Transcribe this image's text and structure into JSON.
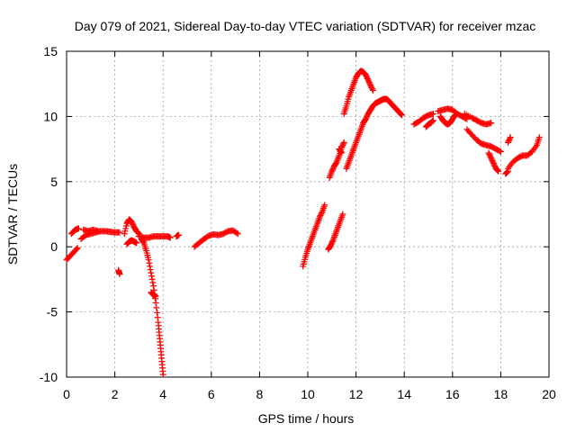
{
  "chart_data": {
    "type": "scatter",
    "title": "Day 079 of 2021, Sidereal Day-to-day VTEC variation (SDTVAR) for receiver mzac",
    "xlabel": "GPS time / hours",
    "ylabel": "SDTVAR / TECUs",
    "xlim": [
      0,
      20
    ],
    "ylim": [
      -10,
      15
    ],
    "xticks": [
      0,
      2,
      4,
      6,
      8,
      10,
      12,
      14,
      16,
      18,
      20
    ],
    "yticks": [
      -10,
      -5,
      0,
      5,
      10,
      15
    ],
    "grid": true,
    "marker": "+",
    "color": "#ff0000",
    "segments": [
      [
        [
          0.0,
          -1.0
        ],
        [
          0.15,
          -0.7
        ],
        [
          0.3,
          -0.4
        ],
        [
          0.45,
          -0.1
        ]
      ],
      [
        [
          0.2,
          1.0
        ],
        [
          0.35,
          1.3
        ],
        [
          0.5,
          1.4
        ]
      ],
      [
        [
          0.6,
          0.6
        ],
        [
          0.8,
          0.9
        ],
        [
          1.0,
          1.0
        ],
        [
          1.2,
          1.1
        ],
        [
          1.4,
          1.2
        ],
        [
          1.6,
          1.2
        ],
        [
          1.8,
          1.15
        ],
        [
          2.0,
          1.1
        ],
        [
          2.2,
          1.1
        ]
      ],
      [
        [
          0.7,
          1.3
        ],
        [
          0.9,
          1.2
        ],
        [
          1.1,
          1.3
        ],
        [
          1.3,
          1.2
        ]
      ],
      [
        [
          2.15,
          -1.8
        ],
        [
          2.2,
          -2.1
        ]
      ],
      [
        [
          2.4,
          1.0
        ],
        [
          2.5,
          1.8
        ],
        [
          2.6,
          2.1
        ],
        [
          2.7,
          1.9
        ],
        [
          2.8,
          1.5
        ],
        [
          2.9,
          1.2
        ],
        [
          3.0,
          1.0
        ]
      ],
      [
        [
          2.5,
          0.2
        ],
        [
          2.6,
          0.4
        ],
        [
          2.7,
          0.5
        ],
        [
          2.8,
          0.4
        ],
        [
          2.9,
          0.3
        ]
      ],
      [
        [
          3.0,
          0.8
        ],
        [
          3.2,
          0.7
        ],
        [
          3.4,
          0.7
        ],
        [
          3.6,
          0.8
        ],
        [
          3.8,
          0.8
        ],
        [
          4.0,
          0.8
        ],
        [
          4.2,
          0.8
        ],
        [
          4.3,
          0.7
        ]
      ],
      [
        [
          4.55,
          0.8
        ],
        [
          4.65,
          0.9
        ]
      ],
      [
        [
          3.1,
          0.6
        ],
        [
          3.2,
          0.3
        ],
        [
          3.3,
          -0.3
        ],
        [
          3.4,
          -1.0
        ],
        [
          3.5,
          -2.0
        ],
        [
          3.6,
          -3.0
        ],
        [
          3.7,
          -4.3
        ],
        [
          3.8,
          -5.8
        ],
        [
          3.85,
          -6.8
        ],
        [
          3.9,
          -7.8
        ],
        [
          3.95,
          -8.8
        ],
        [
          4.0,
          -9.8
        ]
      ],
      [
        [
          3.5,
          -3.5
        ],
        [
          3.6,
          -3.7
        ],
        [
          3.7,
          -3.8
        ]
      ],
      [
        [
          5.3,
          0.0
        ],
        [
          5.5,
          0.3
        ],
        [
          5.7,
          0.6
        ],
        [
          5.9,
          0.85
        ],
        [
          6.1,
          0.95
        ],
        [
          6.3,
          0.9
        ],
        [
          6.5,
          1.0
        ],
        [
          6.7,
          1.2
        ],
        [
          6.9,
          1.25
        ],
        [
          7.1,
          1.0
        ]
      ],
      [
        [
          9.8,
          -1.5
        ],
        [
          9.9,
          -0.8
        ],
        [
          10.0,
          -0.2
        ],
        [
          10.1,
          0.3
        ],
        [
          10.2,
          0.8
        ],
        [
          10.3,
          1.3
        ],
        [
          10.4,
          1.8
        ],
        [
          10.5,
          2.3
        ],
        [
          10.6,
          2.7
        ],
        [
          10.7,
          3.2
        ]
      ],
      [
        [
          10.85,
          -0.2
        ],
        [
          10.95,
          0.1
        ],
        [
          11.05,
          0.5
        ],
        [
          11.15,
          1.0
        ],
        [
          11.25,
          1.5
        ],
        [
          11.35,
          2.0
        ],
        [
          11.45,
          2.5
        ]
      ],
      [
        [
          10.9,
          5.3
        ],
        [
          11.0,
          5.8
        ],
        [
          11.1,
          6.2
        ],
        [
          11.2,
          6.5
        ],
        [
          11.3,
          7.0
        ],
        [
          11.4,
          7.6
        ],
        [
          11.5,
          8.0
        ]
      ],
      [
        [
          11.3,
          7.5
        ],
        [
          11.4,
          7.2
        ]
      ],
      [
        [
          11.5,
          10.2
        ],
        [
          11.6,
          10.8
        ],
        [
          11.7,
          11.5
        ],
        [
          11.8,
          12.0
        ],
        [
          11.9,
          12.5
        ],
        [
          12.0,
          13.0
        ],
        [
          12.1,
          13.3
        ],
        [
          12.2,
          13.5
        ],
        [
          12.3,
          13.4
        ],
        [
          12.4,
          13.2
        ],
        [
          12.5,
          12.8
        ],
        [
          12.6,
          12.4
        ],
        [
          12.7,
          12.0
        ]
      ],
      [
        [
          11.6,
          6.0
        ],
        [
          11.7,
          6.5
        ],
        [
          11.8,
          7.0
        ],
        [
          11.9,
          7.5
        ],
        [
          12.0,
          8.0
        ],
        [
          12.1,
          8.5
        ],
        [
          12.2,
          9.0
        ],
        [
          12.3,
          9.5
        ],
        [
          12.4,
          9.8
        ],
        [
          12.5,
          10.2
        ],
        [
          12.6,
          10.5
        ],
        [
          12.7,
          10.8
        ],
        [
          12.8,
          11.0
        ],
        [
          12.9,
          11.1
        ],
        [
          13.0,
          11.2
        ],
        [
          13.1,
          11.3
        ],
        [
          13.2,
          11.35
        ],
        [
          13.3,
          11.3
        ],
        [
          13.4,
          11.1
        ],
        [
          13.5,
          10.9
        ],
        [
          13.6,
          10.7
        ],
        [
          13.7,
          10.5
        ],
        [
          13.8,
          10.3
        ],
        [
          13.9,
          10.1
        ]
      ],
      [
        [
          14.4,
          9.4
        ],
        [
          14.6,
          9.6
        ],
        [
          14.8,
          9.9
        ],
        [
          15.0,
          10.1
        ],
        [
          15.2,
          10.2
        ]
      ],
      [
        [
          14.9,
          9.2
        ],
        [
          15.0,
          9.4
        ],
        [
          15.1,
          9.5
        ],
        [
          15.2,
          9.7
        ]
      ],
      [
        [
          15.4,
          10.4
        ],
        [
          15.6,
          10.5
        ],
        [
          15.8,
          10.6
        ],
        [
          16.0,
          10.5
        ],
        [
          16.2,
          10.2
        ],
        [
          16.4,
          10.0
        ],
        [
          16.6,
          9.8
        ]
      ],
      [
        [
          15.5,
          10.0
        ],
        [
          15.6,
          9.7
        ],
        [
          15.7,
          9.5
        ],
        [
          15.8,
          9.4
        ],
        [
          15.9,
          9.5
        ],
        [
          16.0,
          9.8
        ],
        [
          16.1,
          10.1
        ]
      ],
      [
        [
          16.5,
          10.2
        ],
        [
          16.8,
          9.9
        ],
        [
          17.0,
          9.7
        ],
        [
          17.2,
          9.5
        ],
        [
          17.4,
          9.4
        ],
        [
          17.6,
          9.5
        ]
      ],
      [
        [
          16.6,
          9.0
        ],
        [
          16.8,
          8.6
        ],
        [
          17.0,
          8.2
        ],
        [
          17.2,
          7.9
        ],
        [
          17.4,
          7.8
        ],
        [
          17.6,
          7.7
        ],
        [
          17.8,
          7.5
        ],
        [
          18.0,
          7.3
        ]
      ],
      [
        [
          17.5,
          7.2
        ],
        [
          17.6,
          6.8
        ],
        [
          17.7,
          6.4
        ],
        [
          17.8,
          6.0
        ],
        [
          17.9,
          5.8
        ]
      ],
      [
        [
          18.2,
          5.6
        ],
        [
          18.3,
          5.8
        ]
      ],
      [
        [
          18.3,
          6.0
        ],
        [
          18.5,
          6.5
        ],
        [
          18.7,
          6.8
        ],
        [
          18.9,
          7.0
        ],
        [
          19.1,
          7.0
        ],
        [
          19.3,
          7.3
        ],
        [
          19.5,
          7.8
        ],
        [
          19.6,
          8.4
        ]
      ],
      [
        [
          18.3,
          8.0
        ],
        [
          18.4,
          8.4
        ]
      ]
    ]
  }
}
